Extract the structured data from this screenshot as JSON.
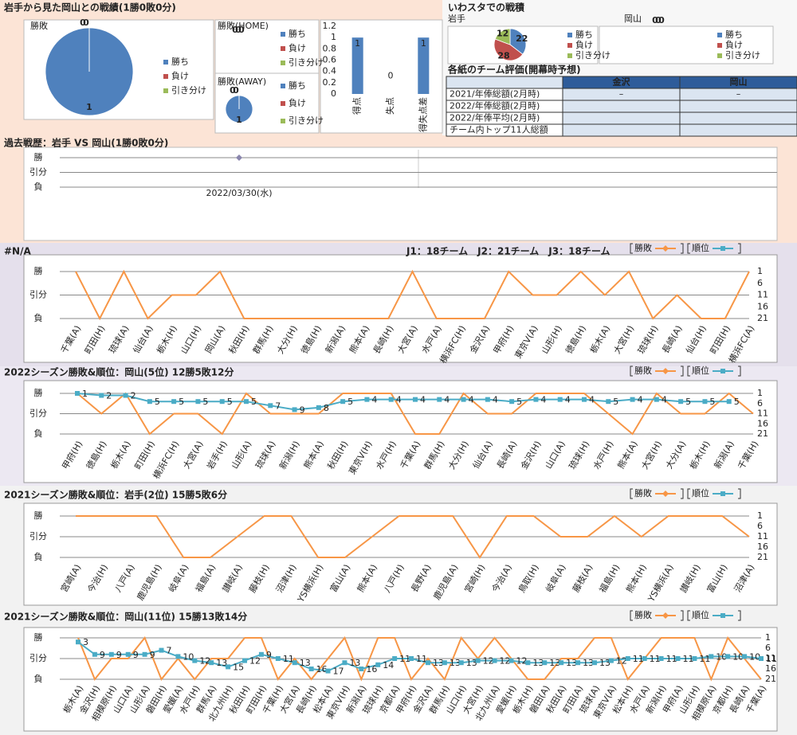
{
  "header": {
    "title": "岩手から見た岡山との戦績(1勝0敗0分)",
    "right_title": "いわスタでの戦積"
  },
  "chart_data": [
    {
      "type": "pie",
      "title": "勝敗",
      "categories": [
        "勝ち",
        "負け",
        "引き分け"
      ],
      "values": [
        1,
        0,
        0
      ],
      "colors": [
        "#4f81bd",
        "#c0504d",
        "#9bbb59"
      ]
    },
    {
      "type": "pie",
      "title": "勝敗(HOME)",
      "categories": [
        "勝ち",
        "負け",
        "引き分け"
      ],
      "values": [
        0,
        0,
        0
      ],
      "colors": [
        "#4f81bd",
        "#c0504d",
        "#9bbb59"
      ]
    },
    {
      "type": "pie",
      "title": "勝敗(AWAY)",
      "categories": [
        "勝ち",
        "負け",
        "引き分け"
      ],
      "values": [
        1,
        0,
        0
      ],
      "colors": [
        "#4f81bd",
        "#c0504d",
        "#9bbb59"
      ]
    },
    {
      "type": "bar",
      "categories": [
        "得点",
        "失点",
        "得失点差"
      ],
      "values": [
        1,
        0,
        1
      ],
      "color": "#4f81bd",
      "ylim": [
        0,
        1.2
      ],
      "yticks": [
        0,
        0.2,
        0.4,
        0.6,
        0.8,
        1,
        1.2
      ]
    },
    {
      "type": "pie",
      "title": "岩手",
      "categories": [
        "勝ち",
        "負け",
        "引き分け"
      ],
      "values": [
        22,
        28,
        12
      ],
      "colors": [
        "#4f81bd",
        "#c0504d",
        "#9bbb59"
      ]
    },
    {
      "type": "pie",
      "title": "岡山",
      "categories": [
        "勝ち",
        "負け",
        "引き分け"
      ],
      "values": [
        0,
        0,
        0
      ],
      "colors": [
        "#4f81bd",
        "#c0504d",
        "#9bbb59"
      ]
    },
    {
      "type": "line",
      "title": "過去戦歴：岩手 VS 岡山(1勝0敗0分)",
      "x": [
        "2022/03/30(水)"
      ],
      "series": [
        {
          "color": "#8a86ad",
          "values": [
            1
          ]
        }
      ],
      "ylim": [
        21,
        1
      ],
      "yticks": [
        {
          "value": 1,
          "label": "勝"
        },
        {
          "value": 11,
          "label": "引分"
        },
        {
          "value": 21,
          "label": "負"
        }
      ],
      "grid": true
    },
    {
      "type": "line",
      "title": "#N/A",
      "annotation": "J1：18チーム　J2：21チーム　J3：18チーム",
      "categories": [
        "千葉(A)",
        "町田(H)",
        "琉球(A)",
        "仙台(A)",
        "栃木(H)",
        "山口(H)",
        "岡山(A)",
        "秋田(H)",
        "群馬(H)",
        "大分(H)",
        "徳島(H)",
        "新潟(A)",
        "熊本(A)",
        "長崎(H)",
        "大宮(A)",
        "水戸(A)",
        "横浜FC(H)",
        "金沢(A)",
        "甲府(H)",
        "東京V(A)",
        "山形(H)",
        "徳島(H)",
        "栃木(A)",
        "大宮(H)",
        "琉球(H)",
        "長崎(A)",
        "仙台(H)",
        "町田(H)",
        "横浜FC(A)"
      ],
      "series": [
        {
          "name": "勝敗",
          "color": "#f79646",
          "values": [
            1,
            21,
            1,
            21,
            11,
            11,
            1,
            21,
            21,
            21,
            21,
            21,
            21,
            21,
            1,
            21,
            21,
            21,
            1,
            11,
            11,
            1,
            11,
            1,
            21,
            11,
            21,
            21,
            1
          ]
        },
        {
          "name": "順位",
          "color": "#4bacc6",
          "axis": "y2",
          "values": [
            null,
            null,
            null,
            null,
            null,
            null,
            null,
            null,
            null,
            null,
            null,
            null,
            null,
            null,
            null,
            null,
            null,
            null,
            null,
            null,
            null,
            null,
            null,
            null,
            null,
            null,
            null,
            null,
            null
          ]
        }
      ],
      "ylim": [
        21,
        1
      ],
      "yticks": [
        {
          "value": 1,
          "label": "勝"
        },
        {
          "value": 11,
          "label": "引分"
        },
        {
          "value": 21,
          "label": "負"
        }
      ],
      "y2lim": [
        21,
        1
      ],
      "y2ticks": [
        1,
        6,
        11,
        16,
        21
      ],
      "grid": true,
      "legend": "top-right"
    },
    {
      "type": "line",
      "title": "2022シーズン勝敗&順位：岡山(5位) 12勝5敗12分",
      "categories": [
        "甲府(H)",
        "徳島(H)",
        "栃木(A)",
        "町田(H)",
        "横浜FC(H)",
        "大宮(A)",
        "岩手(H)",
        "山形(A)",
        "琉球(A)",
        "新潟(H)",
        "熊本(A)",
        "秋田(H)",
        "東京V(H)",
        "水戸(H)",
        "千葉(A)",
        "群馬(H)",
        "大分(H)",
        "仙台(A)",
        "長崎(A)",
        "金沢(H)",
        "山口(A)",
        "琉球(H)",
        "水戸(H)",
        "熊本(A)",
        "大宮(H)",
        "大分(A)",
        "栃木(H)",
        "新潟(A)",
        "千葉(H)"
      ],
      "series": [
        {
          "name": "勝敗",
          "color": "#f79646",
          "values": [
            1,
            11,
            1,
            21,
            11,
            11,
            21,
            1,
            11,
            11,
            11,
            1,
            1,
            1,
            21,
            21,
            1,
            11,
            11,
            1,
            1,
            1,
            11,
            21,
            1,
            11,
            11,
            1,
            11
          ]
        },
        {
          "name": "順位",
          "color": "#4bacc6",
          "axis": "y2",
          "values": [
            1,
            2,
            2,
            5,
            5,
            5,
            5,
            5,
            7,
            9,
            8,
            5,
            4,
            4,
            4,
            4,
            4,
            4,
            5,
            4,
            4,
            4,
            5,
            4,
            4,
            5,
            5,
            5,
            null
          ]
        }
      ],
      "ylim": [
        21,
        1
      ],
      "yticks": [
        {
          "value": 1,
          "label": "勝"
        },
        {
          "value": 11,
          "label": "引分"
        },
        {
          "value": 21,
          "label": "負"
        }
      ],
      "y2lim": [
        21,
        1
      ],
      "y2ticks": [
        1,
        6,
        11,
        16,
        21
      ],
      "grid": true,
      "legend": "top-right"
    },
    {
      "type": "line",
      "title": "2021シーズン勝敗&順位：岩手(2位) 15勝5敗6分",
      "categories": [
        "宮崎(A)",
        "今治(H)",
        "八戸(A)",
        "鹿児島(H)",
        "岐阜(A)",
        "福島(A)",
        "讃岐(A)",
        "藤枝(H)",
        "沼津(H)",
        "YS横浜(H)",
        "富山(A)",
        "熊本(A)",
        "八戸(H)",
        "長野(A)",
        "鹿児島(A)",
        "宮崎(H)",
        "今治(A)",
        "鳥取(H)",
        "岐阜(A)",
        "藤枝(A)",
        "福島(H)",
        "熊本(H)",
        "YS横浜(A)",
        "讃岐(H)",
        "富山(H)",
        "沼津(A)"
      ],
      "series": [
        {
          "name": "勝敗",
          "color": "#f79646",
          "values": [
            1,
            1,
            1,
            1,
            21,
            21,
            11,
            1,
            1,
            21,
            21,
            11,
            1,
            1,
            1,
            21,
            1,
            1,
            11,
            11,
            1,
            11,
            1,
            1,
            1,
            11
          ]
        },
        {
          "name": "順位",
          "color": "#4bacc6",
          "axis": "y2",
          "values": [
            null,
            null,
            null,
            null,
            null,
            null,
            null,
            null,
            null,
            null,
            null,
            null,
            null,
            null,
            null,
            null,
            null,
            null,
            null,
            null,
            null,
            null,
            null,
            null,
            null,
            null
          ]
        }
      ],
      "ylim": [
        21,
        1
      ],
      "yticks": [
        {
          "value": 1,
          "label": "勝"
        },
        {
          "value": 11,
          "label": "引分"
        },
        {
          "value": 21,
          "label": "負"
        }
      ],
      "y2lim": [
        21,
        1
      ],
      "y2ticks": [
        1,
        6,
        11,
        16,
        21
      ],
      "grid": true,
      "legend": "top-right"
    },
    {
      "type": "line",
      "title": "2021シーズン勝敗&順位：岡山(11位) 15勝13敗14分",
      "categories": [
        "栃木(A)",
        "金沢(H)",
        "相模原(H)",
        "山口(A)",
        "山形(A)",
        "磐田(H)",
        "愛媛(A)",
        "水戸(H)",
        "群馬(A)",
        "北九州(H)",
        "秋田(H)",
        "町田(H)",
        "千葉(H)",
        "大宮(A)",
        "長崎(H)",
        "松本(A)",
        "東京V(H)",
        "新潟(A)",
        "琉球(H)",
        "京都(A)",
        "甲府(H)",
        "金沢(A)",
        "群馬(H)",
        "山口(H)",
        "大宮(H)",
        "北九州(A)",
        "愛媛(H)",
        "栃木(H)",
        "磐田(A)",
        "秋田(A)",
        "町田(A)",
        "琉球(A)",
        "東京V(A)",
        "松本(H)",
        "水戸(A)",
        "新潟(H)",
        "甲府(A)",
        "山形(H)",
        "相模原(A)",
        "京都(H)",
        "長崎(A)",
        "千葉(A)"
      ],
      "series": [
        {
          "name": "勝敗",
          "color": "#f79646",
          "values": [
            1,
            21,
            11,
            11,
            1,
            21,
            11,
            21,
            11,
            11,
            1,
            1,
            21,
            11,
            21,
            11,
            1,
            21,
            1,
            1,
            21,
            11,
            21,
            1,
            11,
            1,
            11,
            21,
            21,
            11,
            11,
            1,
            1,
            21,
            11,
            1,
            1,
            1,
            21,
            1,
            11,
            21
          ]
        },
        {
          "name": "順位",
          "color": "#4bacc6",
          "axis": "y2",
          "values": [
            3,
            9,
            9,
            9,
            9,
            7,
            10,
            12,
            13,
            15,
            12,
            9,
            11,
            13,
            16,
            17,
            13,
            16,
            14,
            11,
            11,
            13,
            13,
            13,
            12,
            12,
            12,
            13,
            13,
            13,
            13,
            13,
            12,
            11,
            11,
            11,
            11,
            11,
            10,
            10,
            10,
            11
          ]
        }
      ],
      "ylim": [
        21,
        1
      ],
      "yticks": [
        {
          "value": 1,
          "label": "勝"
        },
        {
          "value": 11,
          "label": "引分"
        },
        {
          "value": 21,
          "label": "負"
        }
      ],
      "y2lim": [
        21,
        1
      ],
      "y2ticks": [
        1,
        6,
        11,
        16,
        21
      ],
      "grid": true,
      "legend": "top-right"
    }
  ],
  "table": {
    "title": "各紙のチーム評価(開幕時予想)",
    "columns": [
      "金沢",
      "岡山"
    ],
    "rows": [
      {
        "label": "2021/年俸総額(2月時)",
        "cells": [
          "–",
          "–"
        ]
      },
      {
        "label": "2022/年俸総額(2月時)"
      },
      {
        "label": "2022/年俸平均(2月時)"
      },
      {
        "label": "チーム内トップ11人総額"
      }
    ]
  }
}
